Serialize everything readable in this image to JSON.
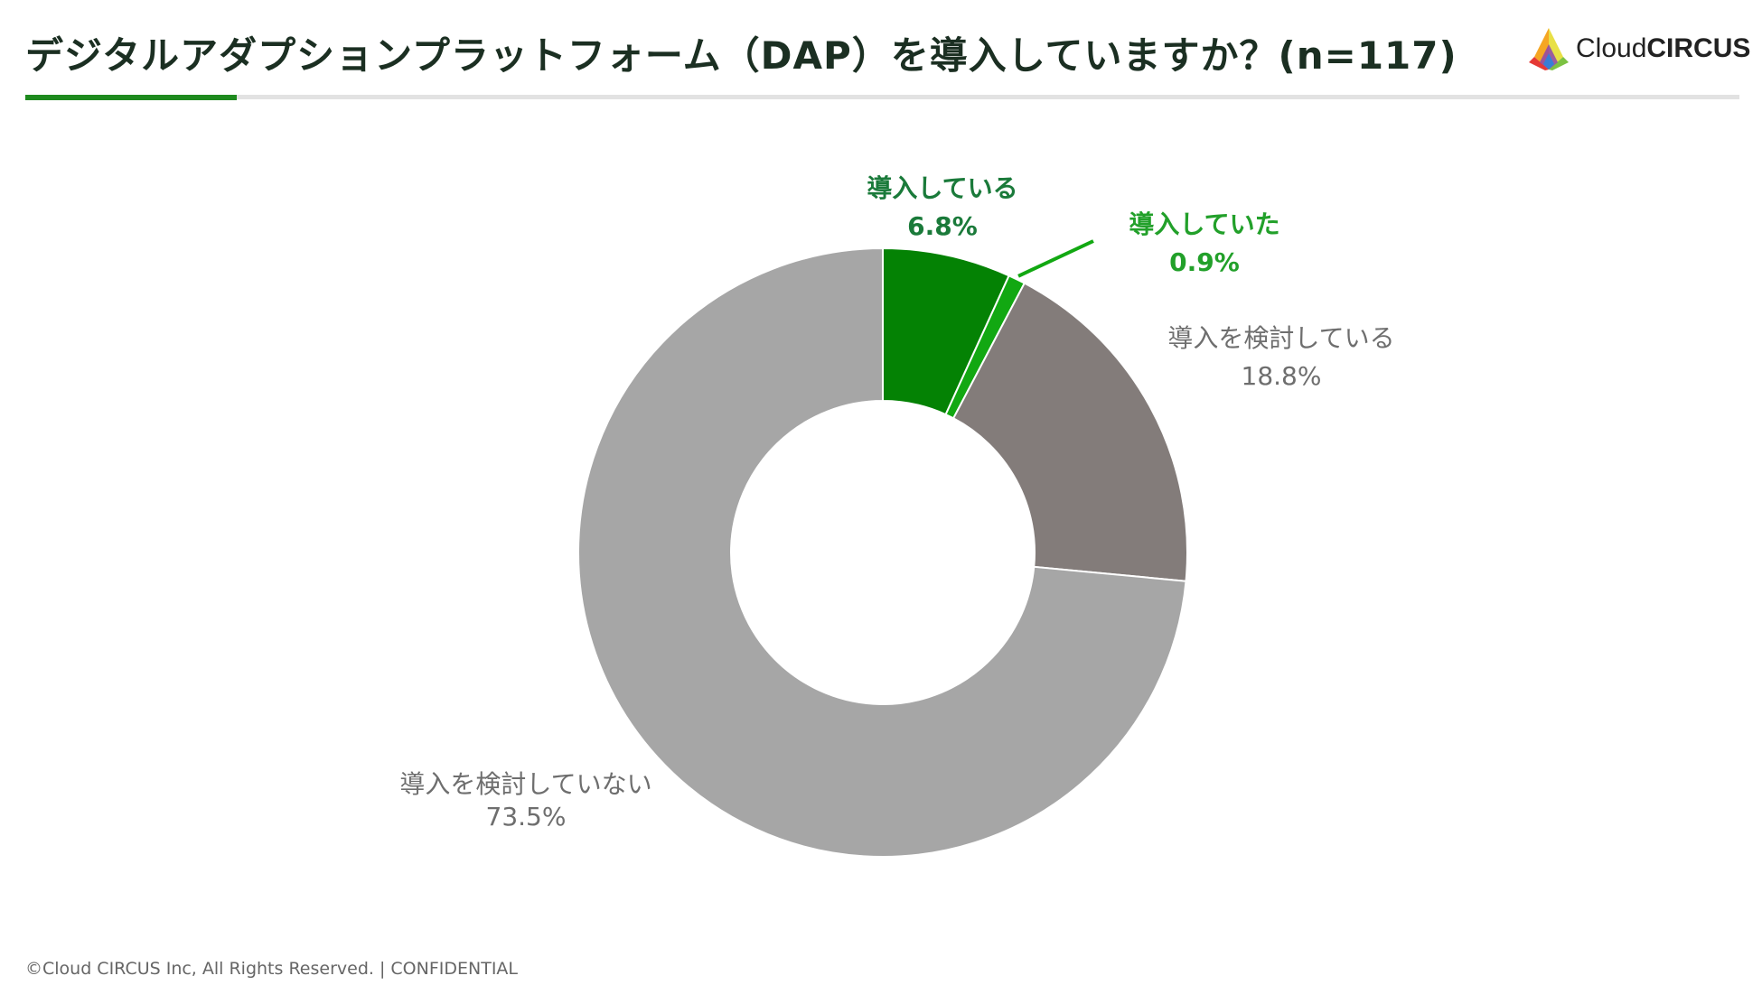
{
  "header": {
    "title": "デジタルアダプションプラットフォーム（DAP）を導入していますか？(n=117)"
  },
  "logo": {
    "text_light": "Cloud",
    "text_bold": "CIRCUS"
  },
  "chart_data": {
    "type": "pie",
    "variant": "donut",
    "title": "デジタルアダプションプラットフォーム（DAP）を導入していますか？(n=117)",
    "n": 117,
    "start_angle_deg": 0,
    "direction": "clockwise",
    "slices": [
      {
        "label": "導入している",
        "value": 6.8,
        "value_label": "6.8%",
        "color": "#048204",
        "label_color": "#1a7a3a",
        "label_bold": true
      },
      {
        "label": "導入していた",
        "value": 0.9,
        "value_label": "0.9%",
        "color": "#12a812",
        "label_color": "#22a02a",
        "label_bold": true,
        "leader_line": true
      },
      {
        "label": "導入を検討している",
        "value": 18.8,
        "value_label": "18.8%",
        "color": "#837c7a",
        "label_color": "#6e6e6e",
        "label_bold": false
      },
      {
        "label": "導入を検討していない",
        "value": 73.5,
        "value_label": "73.5%",
        "color": "#a6a6a6",
        "label_color": "#6e6e6e",
        "label_bold": false
      }
    ]
  },
  "footer": {
    "text": "©Cloud CIRCUS Inc, All Rights Reserved. | CONFIDENTIAL"
  }
}
